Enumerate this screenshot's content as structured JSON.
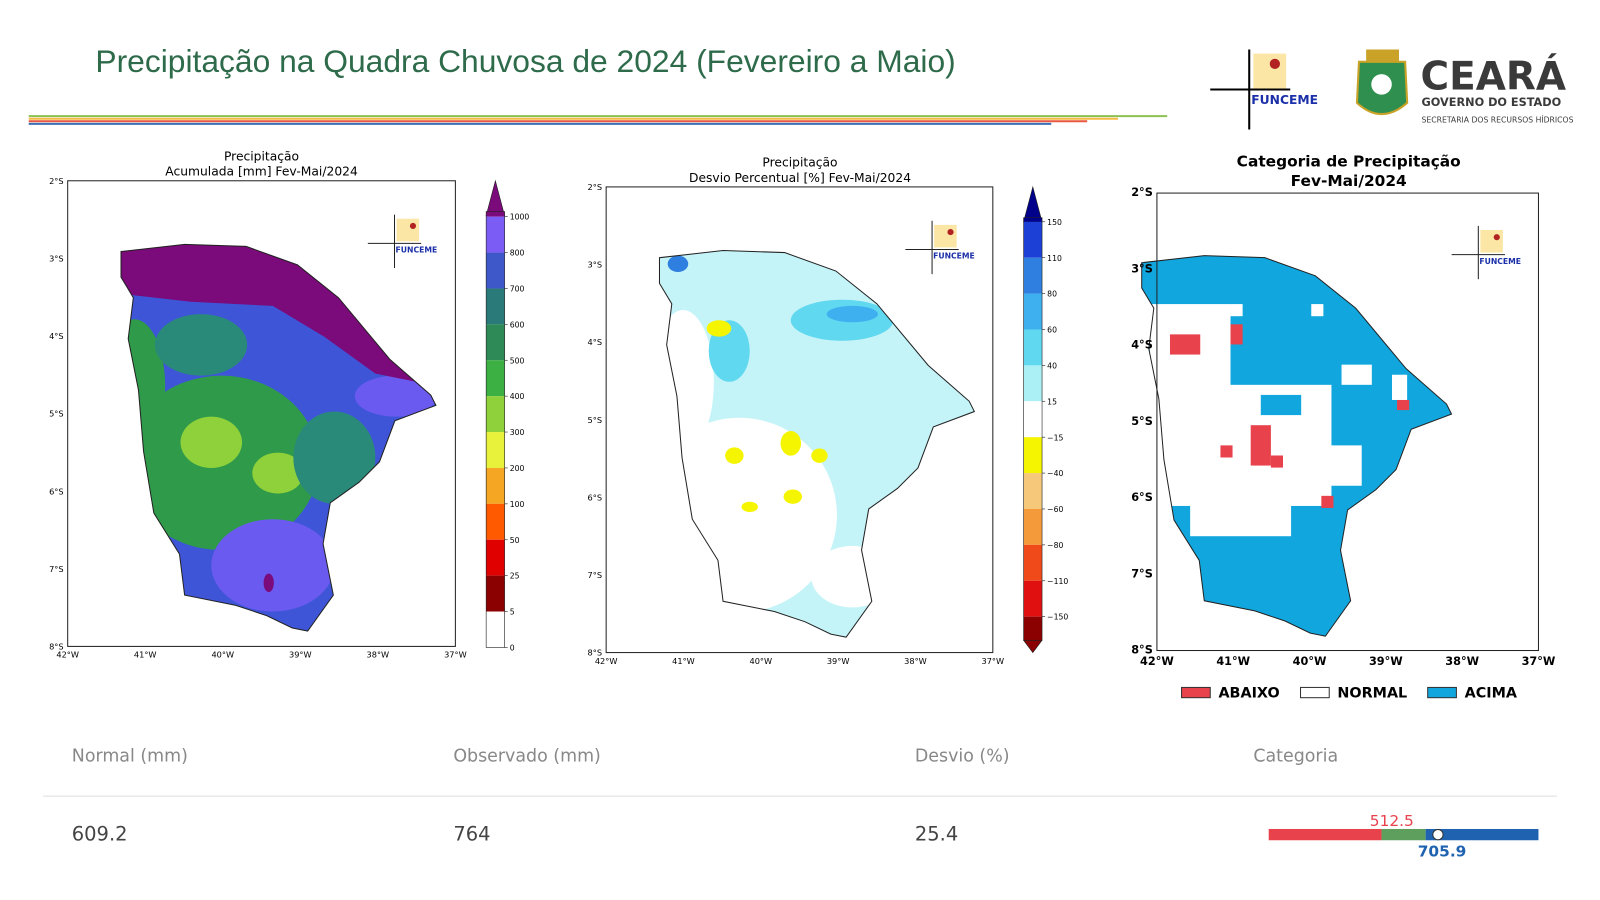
{
  "header": {
    "title": "Precipitação na Quadra Chuvosa de 2024 (Fevereiro a Maio)"
  },
  "logos": {
    "funceme": "FUNCEME",
    "state": "CEARÁ",
    "government": "GOVERNO DO ESTADO",
    "secretariat": "SECRETARIA DOS RECURSOS HÍDRICOS"
  },
  "maps": [
    {
      "title_lines": [
        "Precipitação",
        "Acumulada [mm] Fev-Mai/2024"
      ],
      "watermark": "FUNCEME",
      "lat_labels": [
        "2°S",
        "3°S",
        "4°S",
        "5°S",
        "6°S",
        "7°S",
        "8°S"
      ],
      "lon_labels": [
        "42°W",
        "41°W",
        "40°W",
        "39°W",
        "38°W",
        "37°W"
      ],
      "colorbar_labels": [
        "1000",
        "800",
        "700",
        "600",
        "500",
        "400",
        "300",
        "200",
        "100",
        "50",
        "25",
        "5",
        "0"
      ]
    },
    {
      "title_lines": [
        "Precipitação",
        "Desvio Percentual [%] Fev-Mai/2024"
      ],
      "watermark": "FUNCEME",
      "lat_labels": [
        "2°S",
        "3°S",
        "4°S",
        "5°S",
        "6°S",
        "7°S",
        "8°S"
      ],
      "lon_labels": [
        "42°W",
        "41°W",
        "40°W",
        "39°W",
        "38°W",
        "37°W"
      ],
      "colorbar_labels": [
        "150",
        "110",
        "80",
        "60",
        "40",
        "15",
        "−15",
        "−40",
        "−60",
        "−80",
        "−110",
        "−150"
      ]
    },
    {
      "title_lines": [
        "Categoria de Precipitação",
        "Fev-Mai/2024"
      ],
      "watermark": "FUNCEME",
      "lat_labels": [
        "2°S",
        "3°S",
        "4°S",
        "5°S",
        "6°S",
        "7°S",
        "8°S"
      ],
      "lon_labels": [
        "42°W",
        "41°W",
        "40°W",
        "39°W",
        "38°W",
        "37°W"
      ]
    }
  ],
  "legend": [
    "ABAIXO",
    "NORMAL",
    "ACIMA"
  ],
  "table": {
    "headers": [
      "Normal (mm)",
      "Observado (mm)",
      "Desvio (%)",
      "Categoria"
    ],
    "rows": [
      [
        609.2,
        764,
        25.4
      ]
    ]
  },
  "category_bar": {
    "lower": 512.5,
    "upper": 705.9
  }
}
